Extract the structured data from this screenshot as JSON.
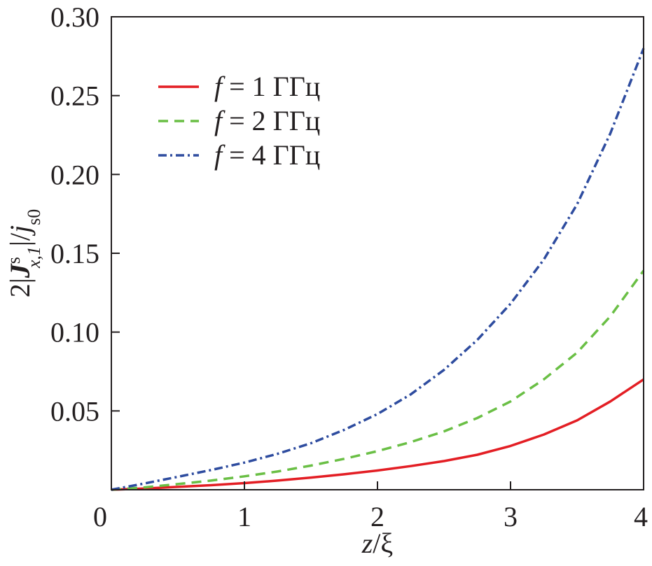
{
  "chart_data": {
    "type": "line",
    "title": "",
    "xlabel": {
      "var": "z",
      "sep": "/",
      "unit": "ξ"
    },
    "ylabel": {
      "pre": "2|",
      "bold": "J",
      "sup": "s",
      "sub": "x,1",
      "mid": "|/",
      "var": "j",
      "sub2": "s0"
    },
    "xlim": [
      0,
      4
    ],
    "ylim": [
      0,
      0.3
    ],
    "xticks": [
      0,
      1,
      2,
      3,
      4
    ],
    "xtick_labels": [
      "0",
      "1",
      "2",
      "3",
      "4"
    ],
    "yticks": [
      0.05,
      0.1,
      0.15,
      0.2,
      0.25,
      0.3
    ],
    "ytick_labels": [
      "0.05",
      "0.10",
      "0.15",
      "0.20",
      "0.25",
      "0.30"
    ],
    "legend_position": "top-left",
    "x": [
      0,
      0.25,
      0.5,
      0.75,
      1.0,
      1.25,
      1.5,
      1.75,
      2.0,
      2.25,
      2.5,
      2.75,
      3.0,
      3.25,
      3.5,
      3.75,
      4.0
    ],
    "series": [
      {
        "legend_var": "f",
        "legend_rest": " = 1 ГГц",
        "color": "#e31e24",
        "dash": "solid",
        "values": [
          0,
          0.0008,
          0.0018,
          0.0029,
          0.0042,
          0.0058,
          0.0077,
          0.0098,
          0.0122,
          0.015,
          0.0182,
          0.0222,
          0.0278,
          0.035,
          0.044,
          0.056,
          0.07
        ]
      },
      {
        "legend_var": "f",
        "legend_rest": " = 2 ГГц",
        "color": "#6abf45",
        "dash": "dashed",
        "values": [
          0,
          0.0015,
          0.0036,
          0.0058,
          0.0085,
          0.0116,
          0.0153,
          0.0196,
          0.0245,
          0.0302,
          0.037,
          0.0455,
          0.056,
          0.07,
          0.087,
          0.11,
          0.139
        ]
      },
      {
        "legend_var": "f",
        "legend_rest": " = 4 ГГц",
        "color": "#2e4c9f",
        "dash": "dashdot",
        "values": [
          0,
          0.004,
          0.0082,
          0.0125,
          0.0172,
          0.0228,
          0.0295,
          0.038,
          0.048,
          0.0605,
          0.076,
          0.095,
          0.118,
          0.146,
          0.181,
          0.226,
          0.28
        ]
      }
    ]
  }
}
